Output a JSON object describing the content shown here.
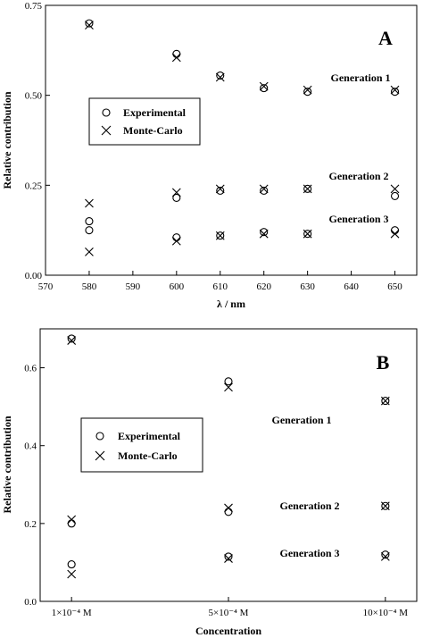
{
  "chart_data": [
    {
      "type": "scatter",
      "panel_label": "A",
      "xlabel": "λ / nm",
      "ylabel": "Relative contribution",
      "xlim": [
        570,
        655
      ],
      "ylim": [
        0.0,
        0.75
      ],
      "x_ticks": [
        "570",
        "580",
        "590",
        "600",
        "610",
        "620",
        "630",
        "640",
        "650"
      ],
      "y_ticks": [
        "0.00",
        "0.25",
        "0.50",
        "0.75"
      ],
      "legend": {
        "position": "left-center",
        "entries": [
          "Experimental",
          "Monte-Carlo"
        ]
      },
      "annotations": [
        "Generation 1",
        "Generation 2",
        "Generation 3"
      ],
      "series": [
        {
          "name": "Experimental",
          "marker": "circle",
          "points": [
            [
              580,
              0.7
            ],
            [
              600,
              0.615
            ],
            [
              610,
              0.555
            ],
            [
              620,
              0.52
            ],
            [
              630,
              0.51
            ],
            [
              650,
              0.51
            ],
            [
              580,
              0.15
            ],
            [
              600,
              0.215
            ],
            [
              610,
              0.235
            ],
            [
              620,
              0.235
            ],
            [
              630,
              0.24
            ],
            [
              650,
              0.22
            ],
            [
              580,
              0.125
            ],
            [
              600,
              0.105
            ],
            [
              610,
              0.11
            ],
            [
              620,
              0.12
            ],
            [
              630,
              0.115
            ],
            [
              650,
              0.125
            ]
          ]
        },
        {
          "name": "Monte-Carlo",
          "marker": "x",
          "points": [
            [
              580,
              0.695
            ],
            [
              600,
              0.605
            ],
            [
              610,
              0.55
            ],
            [
              620,
              0.525
            ],
            [
              630,
              0.515
            ],
            [
              650,
              0.515
            ],
            [
              580,
              0.2
            ],
            [
              600,
              0.23
            ],
            [
              610,
              0.24
            ],
            [
              620,
              0.24
            ],
            [
              630,
              0.24
            ],
            [
              650,
              0.24
            ],
            [
              580,
              0.065
            ],
            [
              600,
              0.095
            ],
            [
              610,
              0.11
            ],
            [
              620,
              0.115
            ],
            [
              630,
              0.115
            ],
            [
              650,
              0.115
            ]
          ]
        }
      ]
    },
    {
      "type": "scatter",
      "panel_label": "B",
      "xlabel": "Concentration",
      "ylabel": "Relative contribution",
      "xlim": [
        0,
        2.4
      ],
      "ylim": [
        0.0,
        0.7
      ],
      "x_ticks": [
        {
          "label": "1×10⁻⁴ M",
          "pos": 0.2
        },
        {
          "label": "5×10⁻⁴ M",
          "pos": 1.2
        },
        {
          "label": "10×10⁻⁴ M",
          "pos": 2.2
        }
      ],
      "y_ticks": [
        "0.0",
        "0.2",
        "0.4",
        "0.6"
      ],
      "legend": {
        "position": "left-center",
        "entries": [
          "Experimental",
          "Monte-Carlo"
        ]
      },
      "annotations": [
        "Generation 1",
        "Generation 2",
        "Generation 3"
      ],
      "series": [
        {
          "name": "Experimental",
          "marker": "circle",
          "points": [
            [
              0.2,
              0.675
            ],
            [
              1.2,
              0.565
            ],
            [
              2.2,
              0.515
            ],
            [
              0.2,
              0.2
            ],
            [
              1.2,
              0.23
            ],
            [
              2.2,
              0.245
            ],
            [
              0.2,
              0.095
            ],
            [
              1.2,
              0.115
            ],
            [
              2.2,
              0.12
            ]
          ]
        },
        {
          "name": "Monte-Carlo",
          "marker": "x",
          "points": [
            [
              0.2,
              0.67
            ],
            [
              1.2,
              0.55
            ],
            [
              2.2,
              0.515
            ],
            [
              0.2,
              0.21
            ],
            [
              1.2,
              0.24
            ],
            [
              2.2,
              0.245
            ],
            [
              0.2,
              0.07
            ],
            [
              1.2,
              0.11
            ],
            [
              2.2,
              0.115
            ]
          ]
        }
      ]
    }
  ]
}
